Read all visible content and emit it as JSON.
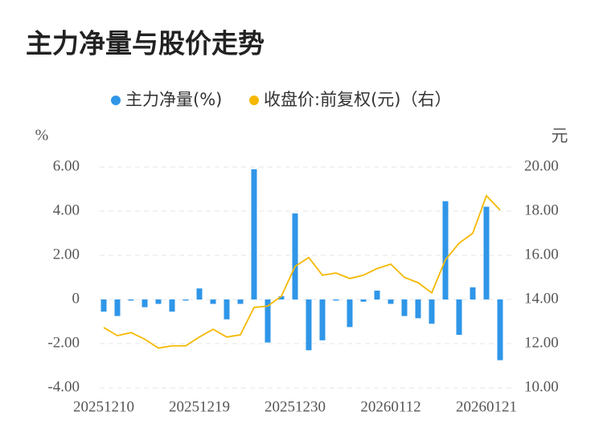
{
  "chart_data": {
    "type": "bar-line",
    "title": "主力净量与股价走势",
    "y_label": "%",
    "y2_label": "元",
    "categories": [
      "20251210",
      null,
      null,
      null,
      null,
      null,
      null,
      "20251219",
      null,
      null,
      null,
      null,
      null,
      null,
      "20251230",
      null,
      null,
      null,
      null,
      null,
      null,
      "20260112",
      null,
      null,
      null,
      null,
      null,
      null,
      "20260121",
      null
    ],
    "series": [
      {
        "name": "主力净量(%)",
        "type": "bar",
        "color": "#2f96e8",
        "values": [
          -0.55,
          -0.75,
          -0.05,
          -0.35,
          -0.2,
          -0.55,
          -0.05,
          0.5,
          -0.2,
          -0.9,
          -0.2,
          5.9,
          -1.95,
          0.15,
          3.9,
          -2.3,
          -1.85,
          -0.05,
          -1.25,
          -0.1,
          0.4,
          -0.2,
          -0.75,
          -0.85,
          -1.1,
          4.45,
          -1.6,
          0.55,
          4.2,
          -2.75
        ]
      },
      {
        "name": "收盘价:前复权(元)（右）",
        "type": "line",
        "axis": "y2",
        "color": "#f5b800",
        "values": [
          12.73,
          12.36,
          12.5,
          12.2,
          11.8,
          11.9,
          11.9,
          12.3,
          12.65,
          12.3,
          12.4,
          13.64,
          13.7,
          14.15,
          15.5,
          15.9,
          15.1,
          15.2,
          14.95,
          15.1,
          15.4,
          15.6,
          15.0,
          14.76,
          14.3,
          15.8,
          16.55,
          17.0,
          18.7,
          18.05
        ]
      }
    ],
    "ylim": [
      -4,
      6
    ],
    "yticks": [
      {
        "value": -4,
        "label": "-4.00"
      },
      {
        "value": -2,
        "label": "-2.00"
      },
      0,
      {
        "value": 2,
        "label": "2.00"
      },
      {
        "value": 4,
        "label": "4.00"
      },
      {
        "value": 6,
        "label": "6.00"
      }
    ],
    "y2lim": [
      10,
      20
    ],
    "y2ticks": [
      {
        "value": 10,
        "label": "10.00"
      },
      {
        "value": 12,
        "label": "12.00"
      },
      {
        "value": 14,
        "label": "14.00"
      },
      {
        "value": 16,
        "label": "16.00"
      },
      {
        "value": 18,
        "label": "18.00"
      },
      {
        "value": 20,
        "label": "20.00"
      }
    ],
    "grid": true
  }
}
